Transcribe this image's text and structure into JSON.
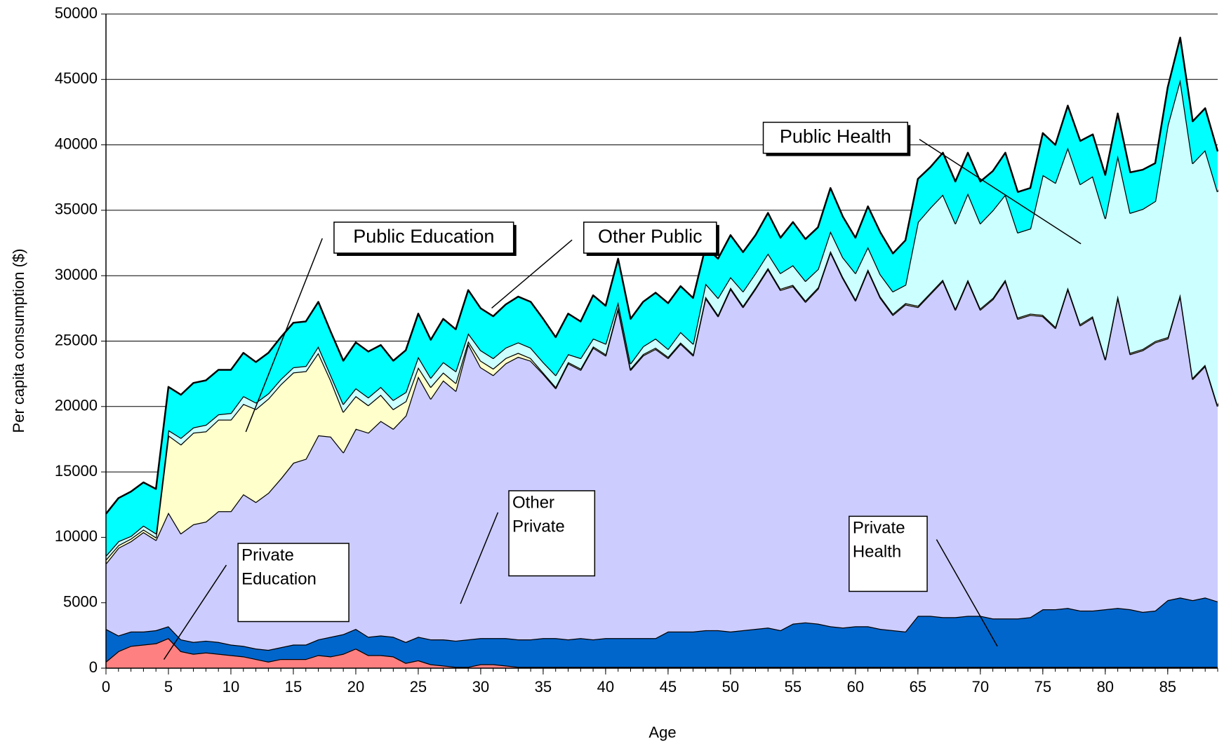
{
  "chart_data": {
    "type": "stacked_area",
    "x_label": "Age",
    "y_label": "Per capita consumption ($)",
    "x": [
      0,
      1,
      2,
      3,
      4,
      5,
      6,
      7,
      8,
      9,
      10,
      11,
      12,
      13,
      14,
      15,
      16,
      17,
      18,
      19,
      20,
      21,
      22,
      23,
      24,
      25,
      26,
      27,
      28,
      29,
      30,
      31,
      32,
      33,
      34,
      35,
      36,
      37,
      38,
      39,
      40,
      41,
      42,
      43,
      44,
      45,
      46,
      47,
      48,
      49,
      50,
      51,
      52,
      53,
      54,
      55,
      56,
      57,
      58,
      59,
      60,
      61,
      62,
      63,
      64,
      65,
      66,
      67,
      68,
      69,
      70,
      71,
      72,
      73,
      74,
      75,
      76,
      77,
      78,
      79,
      80,
      81,
      82,
      83,
      84,
      85,
      86,
      87,
      88,
      89
    ],
    "xlim": [
      0,
      89
    ],
    "xticks": [
      0,
      5,
      10,
      15,
      20,
      25,
      30,
      35,
      40,
      45,
      50,
      55,
      60,
      65,
      70,
      75,
      80,
      85
    ],
    "ylim": [
      0,
      50000
    ],
    "yticks": [
      0,
      5000,
      10000,
      15000,
      20000,
      25000,
      30000,
      35000,
      40000,
      45000,
      50000
    ],
    "grid": true,
    "series": [
      {
        "name": "Private Education",
        "color": "#ff8080",
        "values": [
          500,
          1300,
          1700,
          1800,
          1900,
          2300,
          1300,
          1100,
          1200,
          1100,
          1000,
          900,
          700,
          500,
          700,
          700,
          700,
          1000,
          900,
          1100,
          1500,
          1000,
          1000,
          900,
          400,
          600,
          300,
          200,
          100,
          100,
          300,
          300,
          200,
          100,
          100,
          100,
          100,
          100,
          100,
          100,
          100,
          100,
          100,
          100,
          100,
          100,
          100,
          100,
          100,
          100,
          100,
          100,
          100,
          100,
          100,
          100,
          100,
          100,
          100,
          100,
          100,
          100,
          100,
          100,
          100,
          100,
          100,
          100,
          100,
          100,
          100,
          100,
          100,
          100,
          100,
          100,
          100,
          100,
          100,
          100,
          100,
          100,
          100,
          100,
          100,
          100,
          100,
          100,
          100,
          100
        ]
      },
      {
        "name": "Private Health",
        "color": "#0066cc",
        "values": [
          2500,
          1200,
          1100,
          1000,
          1000,
          900,
          900,
          900,
          900,
          900,
          800,
          800,
          800,
          900,
          900,
          1100,
          1100,
          1200,
          1500,
          1500,
          1500,
          1400,
          1500,
          1500,
          1600,
          1800,
          1900,
          2000,
          2000,
          2100,
          2000,
          2000,
          2100,
          2100,
          2100,
          2200,
          2200,
          2100,
          2200,
          2100,
          2200,
          2200,
          2200,
          2200,
          2200,
          2700,
          2700,
          2700,
          2800,
          2800,
          2700,
          2800,
          2900,
          3000,
          2800,
          3300,
          3400,
          3300,
          3100,
          3000,
          3100,
          3100,
          2900,
          2800,
          2700,
          3900,
          3900,
          3800,
          3800,
          3900,
          3900,
          3700,
          3700,
          3700,
          3800,
          4400,
          4400,
          4500,
          4300,
          4300,
          4400,
          4500,
          4400,
          4200,
          4300,
          5100,
          5300,
          5100,
          5300,
          5000
        ]
      },
      {
        "name": "Other Private",
        "color": "#ccccff",
        "values": [
          5000,
          6700,
          6900,
          7600,
          6900,
          8700,
          8100,
          9000,
          9100,
          10000,
          10200,
          11600,
          11200,
          12000,
          12900,
          13900,
          14200,
          15600,
          15300,
          13900,
          15300,
          15600,
          16400,
          15900,
          17300,
          19900,
          18400,
          19800,
          19100,
          22600,
          20700,
          20100,
          21000,
          21600,
          21300,
          20200,
          19100,
          21100,
          20500,
          22300,
          21600,
          25200,
          20500,
          21600,
          22100,
          20900,
          22000,
          21100,
          25400,
          24000,
          26200,
          24700,
          26000,
          27400,
          26000,
          25800,
          24500,
          25600,
          28600,
          26700,
          24900,
          27200,
          25300,
          24100,
          25000,
          23600,
          24600,
          25700,
          23500,
          25600,
          23400,
          24400,
          25800,
          22900,
          23100,
          22400,
          21500,
          24400,
          21800,
          22400,
          19100,
          23800,
          19500,
          20000,
          20500,
          20000,
          23100,
          16900,
          17700,
          14900
        ]
      },
      {
        "name": "Public Education",
        "color": "#ffffcc",
        "values": [
          300,
          200,
          200,
          200,
          200,
          5900,
          6800,
          7000,
          6900,
          7000,
          7000,
          6900,
          7100,
          7200,
          7200,
          6900,
          6700,
          6300,
          4300,
          3100,
          2500,
          2100,
          2000,
          1500,
          1100,
          700,
          900,
          600,
          600,
          200,
          500,
          500,
          400,
          300,
          200,
          100,
          100,
          100,
          100,
          100,
          100,
          100,
          100,
          100,
          100,
          100,
          100,
          100,
          100,
          100,
          100,
          100,
          100,
          100,
          100,
          100,
          100,
          100,
          100,
          100,
          100,
          100,
          100,
          100,
          100,
          100,
          100,
          100,
          100,
          100,
          100,
          100,
          100,
          100,
          100,
          100,
          100,
          100,
          100,
          100,
          100,
          100,
          100,
          100,
          100,
          100,
          100,
          100,
          100,
          100
        ]
      },
      {
        "name": "Public Health",
        "color": "#ccffff",
        "values": [
          300,
          300,
          200,
          300,
          300,
          400,
          500,
          400,
          500,
          400,
          500,
          600,
          500,
          400,
          400,
          400,
          400,
          500,
          400,
          600,
          600,
          600,
          600,
          700,
          700,
          800,
          700,
          800,
          900,
          600,
          800,
          800,
          800,
          800,
          800,
          800,
          900,
          600,
          800,
          600,
          800,
          400,
          400,
          600,
          700,
          600,
          800,
          800,
          1000,
          1300,
          800,
          1100,
          1100,
          1100,
          1200,
          1500,
          1500,
          1400,
          1500,
          1500,
          2000,
          1700,
          1700,
          1700,
          1400,
          6400,
          6500,
          6500,
          6500,
          6600,
          6500,
          6700,
          6500,
          6500,
          6500,
          10700,
          11000,
          10700,
          10700,
          10700,
          10700,
          10700,
          10700,
          10700,
          10700,
          16200,
          16400,
          16400,
          16400,
          16300
        ]
      },
      {
        "name": "Other Public",
        "color": "#00ffff",
        "values": [
          3200,
          3300,
          3400,
          3300,
          3400,
          3300,
          3300,
          3400,
          3400,
          3400,
          3300,
          3300,
          3100,
          3100,
          3200,
          3400,
          3400,
          3400,
          3300,
          3300,
          3500,
          3500,
          3200,
          3000,
          3200,
          3300,
          2900,
          3300,
          3200,
          3300,
          3200,
          3200,
          3300,
          3500,
          3500,
          3300,
          2900,
          3100,
          2800,
          3300,
          2900,
          3300,
          3400,
          3400,
          3500,
          3500,
          3500,
          3500,
          2800,
          3000,
          3200,
          3000,
          2900,
          3100,
          2700,
          3300,
          3200,
          3200,
          3300,
          3100,
          2700,
          3100,
          3200,
          2900,
          3400,
          3300,
          3100,
          3200,
          3200,
          3100,
          3200,
          3000,
          3200,
          3100,
          3100,
          3200,
          2900,
          3200,
          3300,
          3200,
          3300,
          3200,
          3100,
          3000,
          2900,
          2900,
          3200,
          3200,
          3200,
          3100
        ]
      }
    ],
    "annotations": [
      {
        "lines": [
          "Public Health"
        ]
      },
      {
        "lines": [
          "Public Education"
        ]
      },
      {
        "lines": [
          "Other Public"
        ]
      },
      {
        "lines": [
          "Private",
          "Education"
        ]
      },
      {
        "lines": [
          "Other",
          "Private"
        ]
      },
      {
        "lines": [
          "Private",
          "Health"
        ]
      }
    ]
  }
}
